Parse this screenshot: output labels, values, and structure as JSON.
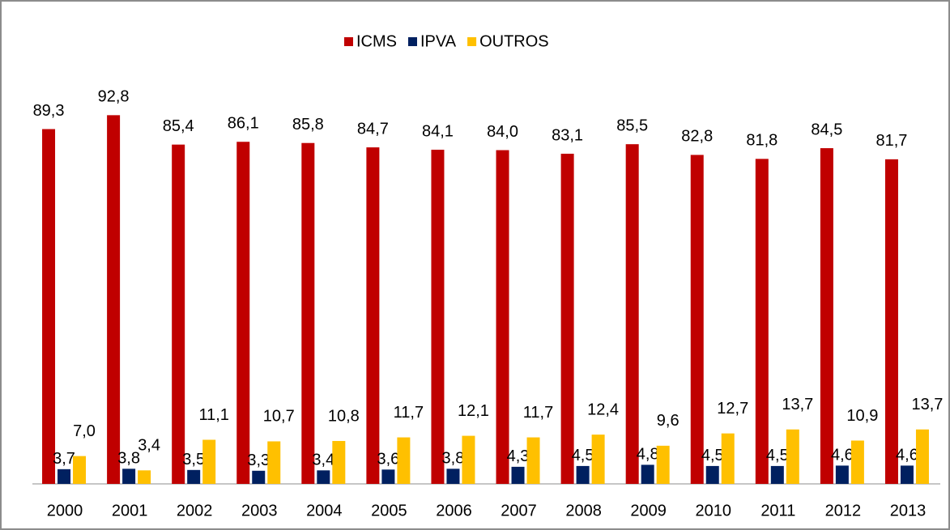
{
  "chart_data": {
    "type": "bar",
    "categories": [
      "2000",
      "2001",
      "2002",
      "2003",
      "2004",
      "2005",
      "2006",
      "2007",
      "2008",
      "2009",
      "2010",
      "2011",
      "2012",
      "2013"
    ],
    "series": [
      {
        "name": "ICMS",
        "color": "#c00000",
        "values": [
          89.3,
          92.8,
          85.4,
          86.1,
          85.8,
          84.7,
          84.1,
          84.0,
          83.1,
          85.5,
          82.8,
          81.8,
          84.5,
          81.7
        ],
        "value_labels": [
          "89,3",
          "92,8",
          "85,4",
          "86,1",
          "85,8",
          "84,7",
          "84,1",
          "84,0",
          "83,1",
          "85,5",
          "82,8",
          "81,8",
          "84,5",
          "81,7"
        ]
      },
      {
        "name": "IPVA",
        "color": "#002060",
        "values": [
          3.7,
          3.8,
          3.5,
          3.3,
          3.4,
          3.6,
          3.8,
          4.3,
          4.5,
          4.8,
          4.5,
          4.5,
          4.6,
          4.6
        ],
        "value_labels": [
          "3,7",
          "3,8",
          "3,5",
          "3,3",
          "3,4",
          "3,6",
          "3,8",
          "4,3",
          "4,5",
          "4,8",
          "4,5",
          "4,5",
          "4,6",
          "4,6"
        ]
      },
      {
        "name": "OUTROS",
        "color": "#ffc000",
        "values": [
          7.0,
          3.4,
          11.1,
          10.7,
          10.8,
          11.7,
          12.1,
          11.7,
          12.4,
          9.6,
          12.7,
          13.7,
          10.9,
          13.7
        ],
        "value_labels": [
          "7,0",
          "3,4",
          "11,1",
          "10,7",
          "10,8",
          "11,7",
          "12,1",
          "11,7",
          "12,4",
          "9,6",
          "12,7",
          "13,7",
          "10,9",
          "13,7"
        ]
      }
    ],
    "ylim": [
      0,
      100
    ]
  }
}
